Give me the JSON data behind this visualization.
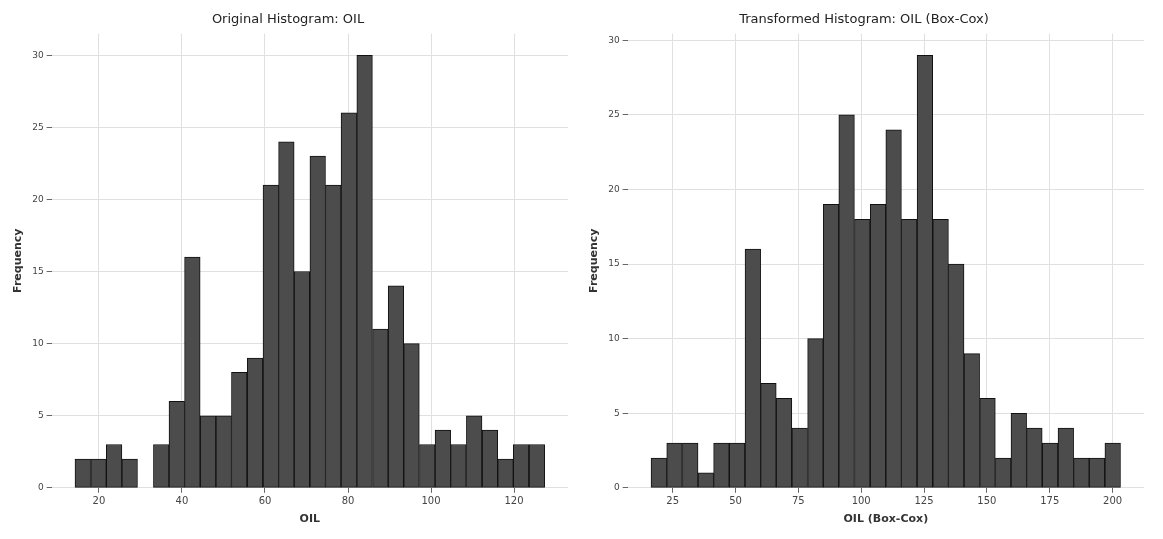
{
  "chart_data": [
    {
      "type": "histogram",
      "title": "Original Histogram: OIL",
      "xlabel": "OIL",
      "ylabel": "Frequency",
      "color": "#4c4c4c",
      "grid": true,
      "bins": [
        14.2,
        18.0,
        21.8,
        25.5,
        29.3,
        33.1,
        36.9,
        40.6,
        44.4,
        48.2,
        51.9,
        55.7,
        59.5,
        63.3,
        67.0,
        70.8,
        74.6,
        78.3,
        82.1,
        85.9,
        89.7,
        93.4,
        97.2,
        101.0,
        104.7,
        108.5,
        112.3,
        116.1,
        119.8,
        123.6,
        127.4
      ],
      "values": [
        2,
        2,
        3,
        2,
        0,
        3,
        6,
        16,
        5,
        5,
        8,
        9,
        21,
        24,
        15,
        23,
        21,
        26,
        30,
        11,
        14,
        10,
        3,
        4,
        3,
        5,
        4,
        2,
        3,
        3
      ],
      "xlim": [
        8.6,
        133.0
      ],
      "xticks": [
        20,
        40,
        60,
        80,
        100,
        120
      ],
      "ylim": [
        0,
        31.5
      ],
      "yticks": [
        0,
        5,
        10,
        15,
        20,
        25,
        30
      ]
    },
    {
      "type": "histogram",
      "title": "Transformed Histogram: OIL (Box-Cox)",
      "xlabel": "OIL (Box-Cox)",
      "ylabel": "Frequency",
      "color": "#4c4c4c",
      "grid": true,
      "bins": [
        16.4,
        22.6,
        28.9,
        35.1,
        41.3,
        47.5,
        53.8,
        60.0,
        66.2,
        72.4,
        78.7,
        84.9,
        91.1,
        97.3,
        103.6,
        109.8,
        116.0,
        122.2,
        128.5,
        134.7,
        140.9,
        147.1,
        153.4,
        159.6,
        165.8,
        172.0,
        178.3,
        184.5,
        190.7,
        196.9,
        203.2
      ],
      "values": [
        2,
        3,
        3,
        1,
        3,
        3,
        16,
        7,
        6,
        4,
        10,
        19,
        25,
        18,
        19,
        24,
        18,
        29,
        18,
        15,
        9,
        6,
        2,
        5,
        4,
        3,
        4,
        2,
        2,
        3
      ],
      "xlim": [
        7.1,
        212.5
      ],
      "xticks": [
        25,
        50,
        75,
        100,
        125,
        150,
        175,
        200
      ],
      "ylim": [
        0,
        30.45
      ],
      "yticks": [
        0,
        5,
        10,
        15,
        20,
        25,
        30
      ]
    }
  ]
}
